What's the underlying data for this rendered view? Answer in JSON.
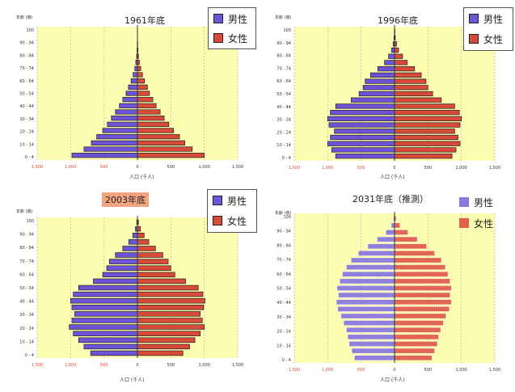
{
  "colors": {
    "male": "#6b55d6",
    "female": "#d84a3a",
    "plot_bg": "#fdfdb2",
    "red_tick": "#d8463a"
  },
  "legend": {
    "male": "男性",
    "female": "女性"
  },
  "chart_data": [
    {
      "type": "bar",
      "title": "1961年底",
      "title_highlight": false,
      "age_axis_header": "年齢 (歳)",
      "xlabel": "人口 (千人)",
      "xlim": [
        -1500,
        1500
      ],
      "xticks": [
        {
          "v": -1500,
          "label": "1,500",
          "red": true
        },
        {
          "v": -1000,
          "label": "1,000",
          "red": true
        },
        {
          "v": -500,
          "label": "500",
          "red": true
        },
        {
          "v": 0,
          "label": "0",
          "red": false
        },
        {
          "v": 500,
          "label": "500",
          "red": false
        },
        {
          "v": 1000,
          "label": "1,000",
          "red": false
        },
        {
          "v": 1500,
          "label": "1,500",
          "red": false
        }
      ],
      "age_ticks": [
        "100",
        "90 - 94",
        "80 - 84",
        "70 - 74",
        "60 - 64",
        "50 - 54",
        "40 - 44",
        "30 - 34",
        "20 - 24",
        "10 - 14",
        "0 - 4"
      ],
      "male": [
        980,
        800,
        690,
        610,
        520,
        450,
        390,
        330,
        270,
        220,
        170,
        135,
        95,
        65,
        40,
        25,
        12,
        6,
        3,
        1,
        1
      ],
      "female": [
        1000,
        820,
        710,
        630,
        540,
        470,
        400,
        340,
        280,
        230,
        180,
        150,
        105,
        75,
        50,
        30,
        16,
        8,
        4,
        2,
        1
      ]
    },
    {
      "type": "bar",
      "title": "1996年底",
      "title_highlight": false,
      "age_axis_header": "年齢 (歳)",
      "xlabel": "人口 (千人)",
      "xlim": [
        -1500,
        1500
      ],
      "xticks": [
        {
          "v": -1500,
          "label": "1,500",
          "red": true
        },
        {
          "v": -1000,
          "label": "1,000",
          "red": true
        },
        {
          "v": -500,
          "label": "500",
          "red": true
        },
        {
          "v": 0,
          "label": "0",
          "red": false
        },
        {
          "v": 500,
          "label": "500",
          "red": false
        },
        {
          "v": 1000,
          "label": "1,000",
          "red": false
        },
        {
          "v": 1500,
          "label": "1,500",
          "red": false
        }
      ],
      "age_ticks": [
        "100",
        "90 - 94",
        "80 - 84",
        "70 - 74",
        "60 - 64",
        "50 - 54",
        "40 - 44",
        "30 - 34",
        "20 - 24",
        "10 - 14",
        "0 - 4"
      ],
      "male": [
        880,
        940,
        1000,
        960,
        900,
        980,
        1000,
        960,
        880,
        650,
        530,
        470,
        440,
        360,
        250,
        150,
        90,
        45,
        20,
        8,
        3
      ],
      "female": [
        860,
        920,
        980,
        950,
        900,
        980,
        1000,
        970,
        900,
        700,
        570,
        500,
        470,
        400,
        300,
        190,
        120,
        60,
        30,
        12,
        5
      ]
    },
    {
      "type": "bar",
      "title": "2003年底",
      "title_highlight": true,
      "age_axis_header": "年齢 (歳)",
      "xlabel": "人口 (千人)",
      "xlim": [
        -1500,
        1500
      ],
      "xticks": [
        {
          "v": -1500,
          "label": "1,500",
          "red": true
        },
        {
          "v": -1000,
          "label": "1,000",
          "red": true
        },
        {
          "v": -500,
          "label": "500",
          "red": true
        },
        {
          "v": 0,
          "label": "0",
          "red": false
        },
        {
          "v": 500,
          "label": "500",
          "red": false
        },
        {
          "v": 1000,
          "label": "1,000",
          "red": false
        },
        {
          "v": 1500,
          "label": "1,500",
          "red": false
        }
      ],
      "age_ticks": [
        "100",
        "90 - 94",
        "80 - 84",
        "70 - 74",
        "60 - 64",
        "50 - 54",
        "40 - 44",
        "30 - 34",
        "20 - 24",
        "10 - 14",
        "0 - 4"
      ],
      "male": [
        700,
        800,
        880,
        960,
        1020,
        980,
        940,
        980,
        1000,
        960,
        880,
        660,
        520,
        460,
        420,
        330,
        220,
        130,
        70,
        30,
        10
      ],
      "female": [
        680,
        780,
        860,
        940,
        1000,
        970,
        940,
        990,
        1010,
        980,
        910,
        720,
        560,
        500,
        460,
        380,
        270,
        170,
        100,
        45,
        15
      ]
    },
    {
      "type": "bar",
      "title": "2031年底（推測）",
      "title_highlight": false,
      "age_axis_header": "年齢 (歳)",
      "xlabel": "人口 (千人)",
      "xlim": [
        -1500,
        1500
      ],
      "xticks": [
        {
          "v": -1500,
          "label": "1,500",
          "red": true
        },
        {
          "v": -1000,
          "label": "1,000",
          "red": true
        },
        {
          "v": -500,
          "label": "500",
          "red": true
        },
        {
          "v": 0,
          "label": "0",
          "red": false
        },
        {
          "v": 500,
          "label": "500",
          "red": false
        },
        {
          "v": 1000,
          "label": "1,000",
          "red": false
        },
        {
          "v": 1500,
          "label": "1,500",
          "red": false
        }
      ],
      "age_ticks": [
        "100",
        "90 - 94",
        "80 - 84",
        "70 - 74",
        "60 - 64",
        "50 - 54",
        "40 - 44",
        "30 - 34",
        "20 - 24",
        "10 - 14",
        "0 - 4"
      ],
      "male": [
        600,
        640,
        680,
        700,
        720,
        760,
        800,
        850,
        870,
        840,
        860,
        820,
        780,
        720,
        650,
        540,
        400,
        260,
        130,
        50,
        15
      ],
      "female": [
        560,
        600,
        640,
        660,
        690,
        730,
        770,
        820,
        850,
        830,
        850,
        830,
        800,
        760,
        700,
        600,
        480,
        340,
        200,
        80,
        25
      ]
    }
  ]
}
